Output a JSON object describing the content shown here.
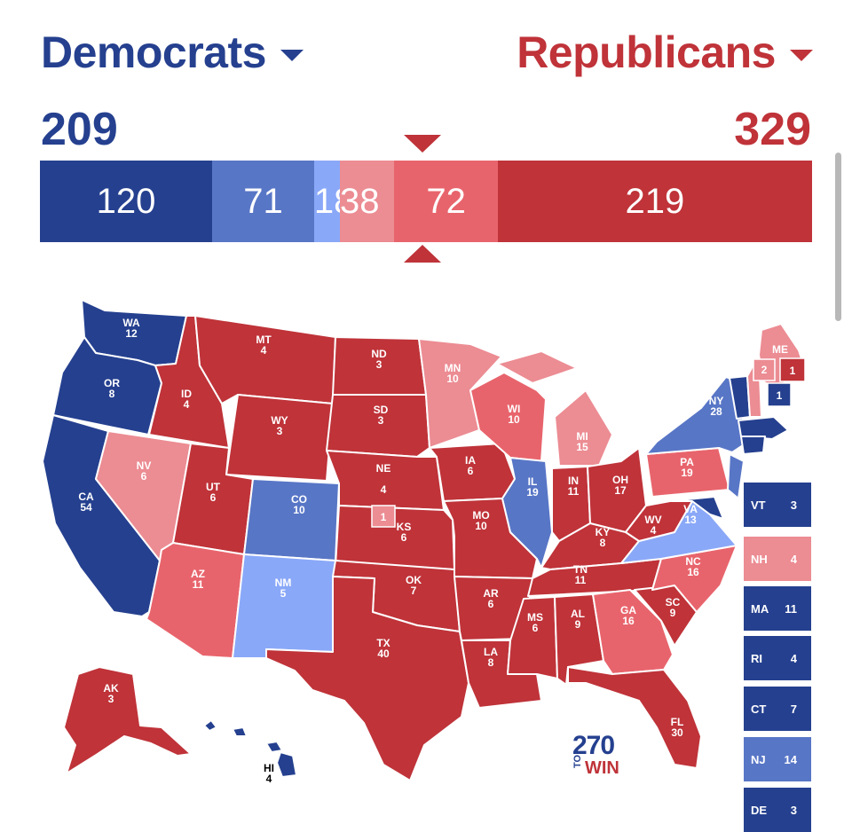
{
  "header": {
    "dem_label": "Democrats",
    "rep_label": "Republicans",
    "dem_total": "209",
    "rep_total": "329"
  },
  "colors": {
    "safe_dem": "#25408f",
    "likely_dem": "#5876c6",
    "lean_dem": "#8aa8f8",
    "lean_rep": "#ec8c93",
    "likely_rep": "#e8646c",
    "safe_rep": "#bf3339"
  },
  "bar": [
    {
      "label": "120",
      "value": 120,
      "color": "#25408f"
    },
    {
      "label": "71",
      "value": 71,
      "color": "#5876c6"
    },
    {
      "label": "18",
      "value": 18,
      "color": "#8aa8f8"
    },
    {
      "label": "38",
      "value": 38,
      "color": "#ec8c93"
    },
    {
      "label": "72",
      "value": 72,
      "color": "#e8646c"
    },
    {
      "label": "219",
      "value": 219,
      "color": "#bf3339"
    }
  ],
  "states": {
    "WA": {
      "abbr": "WA",
      "ev": "12"
    },
    "OR": {
      "abbr": "OR",
      "ev": "8"
    },
    "CA": {
      "abbr": "CA",
      "ev": "54"
    },
    "ID": {
      "abbr": "ID",
      "ev": "4"
    },
    "NV": {
      "abbr": "NV",
      "ev": "6"
    },
    "MT": {
      "abbr": "MT",
      "ev": "4"
    },
    "WY": {
      "abbr": "WY",
      "ev": "3"
    },
    "UT": {
      "abbr": "UT",
      "ev": "6"
    },
    "AZ": {
      "abbr": "AZ",
      "ev": "11"
    },
    "CO": {
      "abbr": "CO",
      "ev": "10"
    },
    "NM": {
      "abbr": "NM",
      "ev": "5"
    },
    "ND": {
      "abbr": "ND",
      "ev": "3"
    },
    "SD": {
      "abbr": "SD",
      "ev": "3"
    },
    "NE": {
      "abbr": "NE",
      "ev": "4"
    },
    "NE2": {
      "abbr": "",
      "ev": "1"
    },
    "KS": {
      "abbr": "KS",
      "ev": "6"
    },
    "OK": {
      "abbr": "OK",
      "ev": "7"
    },
    "TX": {
      "abbr": "TX",
      "ev": "40"
    },
    "MN": {
      "abbr": "MN",
      "ev": "10"
    },
    "IA": {
      "abbr": "IA",
      "ev": "6"
    },
    "MO": {
      "abbr": "MO",
      "ev": "10"
    },
    "AR": {
      "abbr": "AR",
      "ev": "6"
    },
    "LA": {
      "abbr": "LA",
      "ev": "8"
    },
    "WI": {
      "abbr": "WI",
      "ev": "10"
    },
    "IL": {
      "abbr": "IL",
      "ev": "19"
    },
    "MI": {
      "abbr": "MI",
      "ev": "15"
    },
    "IN": {
      "abbr": "IN",
      "ev": "11"
    },
    "OH": {
      "abbr": "OH",
      "ev": "17"
    },
    "KY": {
      "abbr": "KY",
      "ev": "8"
    },
    "TN": {
      "abbr": "TN",
      "ev": "11"
    },
    "MS": {
      "abbr": "MS",
      "ev": "6"
    },
    "AL": {
      "abbr": "AL",
      "ev": "9"
    },
    "GA": {
      "abbr": "GA",
      "ev": "16"
    },
    "FL": {
      "abbr": "FL",
      "ev": "30"
    },
    "SC": {
      "abbr": "SC",
      "ev": "9"
    },
    "NC": {
      "abbr": "NC",
      "ev": "16"
    },
    "VA": {
      "abbr": "VA",
      "ev": "13"
    },
    "WV": {
      "abbr": "WV",
      "ev": "4"
    },
    "PA": {
      "abbr": "PA",
      "ev": "19"
    },
    "NY": {
      "abbr": "NY",
      "ev": "28"
    },
    "ME": {
      "abbr": "ME",
      "ev": "2"
    },
    "ME1": {
      "abbr": "",
      "ev": "1"
    },
    "ME2": {
      "abbr": "",
      "ev": "1"
    },
    "AK": {
      "abbr": "AK",
      "ev": "3"
    },
    "HI": {
      "abbr": "HI",
      "ev": "4"
    }
  },
  "small_states": [
    {
      "abbr": "VT",
      "ev": "3"
    },
    {
      "abbr": "NH",
      "ev": "4"
    },
    {
      "abbr": "MA",
      "ev": "11"
    },
    {
      "abbr": "RI",
      "ev": "4"
    },
    {
      "abbr": "CT",
      "ev": "7"
    },
    {
      "abbr": "NJ",
      "ev": "14"
    },
    {
      "abbr": "DE",
      "ev": "3"
    }
  ],
  "logo": {
    "number": "270",
    "to": "TO",
    "win": "WIN"
  }
}
